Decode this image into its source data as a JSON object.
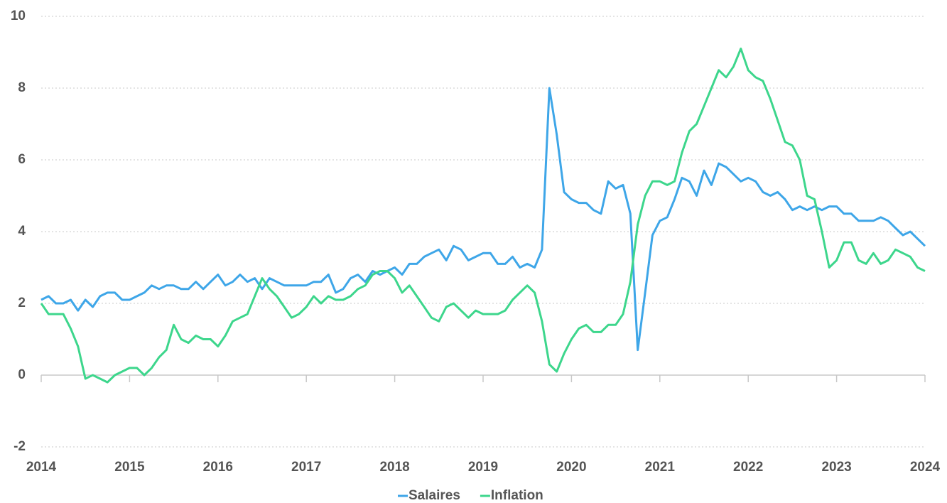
{
  "chart_data": {
    "type": "line",
    "categories": [
      "2014",
      null,
      null,
      null,
      null,
      null,
      null,
      null,
      null,
      null,
      null,
      null,
      "2015",
      null,
      null,
      null,
      null,
      null,
      null,
      null,
      null,
      null,
      null,
      null,
      "2016",
      null,
      null,
      null,
      null,
      null,
      null,
      null,
      null,
      null,
      null,
      null,
      "2017",
      null,
      null,
      null,
      null,
      null,
      null,
      null,
      null,
      null,
      null,
      null,
      "2018",
      null,
      null,
      null,
      null,
      null,
      null,
      null,
      null,
      null,
      null,
      null,
      "2019",
      null,
      null,
      null,
      null,
      null,
      null,
      null,
      null,
      null,
      null,
      null,
      "2020",
      null,
      null,
      null,
      null,
      null,
      null,
      null,
      null,
      null,
      null,
      null,
      "2021",
      null,
      null,
      null,
      null,
      null,
      null,
      null,
      null,
      null,
      null,
      null,
      "2022",
      null,
      null,
      null,
      null,
      null,
      null,
      null,
      null,
      null,
      null,
      null,
      "2023",
      null,
      null,
      null,
      null,
      null,
      null,
      null,
      null,
      null,
      null,
      null,
      "2024"
    ],
    "series": [
      {
        "name": "Salaires",
        "color": "#3ea6e8",
        "values": [
          2.1,
          2.2,
          2.0,
          2.0,
          2.1,
          1.8,
          2.1,
          1.9,
          2.2,
          2.3,
          2.3,
          2.1,
          2.1,
          2.2,
          2.3,
          2.5,
          2.4,
          2.5,
          2.5,
          2.4,
          2.4,
          2.6,
          2.4,
          2.6,
          2.8,
          2.5,
          2.6,
          2.8,
          2.6,
          2.7,
          2.4,
          2.7,
          2.6,
          2.5,
          2.5,
          2.5,
          2.5,
          2.6,
          2.6,
          2.8,
          2.3,
          2.4,
          2.7,
          2.8,
          2.6,
          2.9,
          2.8,
          2.9,
          3.0,
          2.8,
          3.1,
          3.1,
          3.3,
          3.4,
          3.5,
          3.2,
          3.6,
          3.5,
          3.2,
          3.3,
          3.4,
          3.4,
          3.1,
          3.1,
          3.3,
          3.0,
          3.1,
          3.0,
          3.5,
          8.0,
          6.7,
          5.1,
          4.9,
          4.8,
          4.8,
          4.6,
          4.5,
          5.4,
          5.2,
          5.3,
          4.5,
          0.7,
          2.3,
          3.9,
          4.3,
          4.4,
          4.9,
          5.5,
          5.4,
          5.0,
          5.7,
          5.3,
          5.9,
          5.8,
          5.6,
          5.4,
          5.5,
          5.4,
          5.1,
          5.0,
          5.1,
          4.9,
          4.6,
          4.7,
          4.6,
          4.7,
          4.6,
          4.7,
          4.7,
          4.5,
          4.5,
          4.3,
          4.3,
          4.3,
          4.4,
          4.3,
          4.1,
          3.9,
          4.0,
          3.8,
          3.6
        ]
      },
      {
        "name": "Inflation",
        "color": "#3dd68c",
        "values": [
          2.0,
          1.7,
          1.7,
          1.7,
          1.3,
          0.8,
          -0.1,
          0.0,
          -0.1,
          -0.2,
          0.0,
          0.1,
          0.2,
          0.2,
          0.0,
          0.2,
          0.5,
          0.7,
          1.4,
          1.0,
          0.9,
          1.1,
          1.0,
          1.0,
          0.8,
          1.1,
          1.5,
          1.6,
          1.7,
          2.2,
          2.7,
          2.4,
          2.2,
          1.9,
          1.6,
          1.7,
          1.9,
          2.2,
          2.0,
          2.2,
          2.1,
          2.1,
          2.2,
          2.4,
          2.5,
          2.8,
          2.9,
          2.9,
          2.7,
          2.3,
          2.5,
          2.2,
          1.9,
          1.6,
          1.5,
          1.9,
          2.0,
          1.8,
          1.6,
          1.8,
          1.7,
          1.7,
          1.7,
          1.8,
          2.1,
          2.3,
          2.5,
          2.3,
          1.5,
          0.3,
          0.1,
          0.6,
          1.0,
          1.3,
          1.4,
          1.2,
          1.2,
          1.4,
          1.4,
          1.7,
          2.6,
          4.2,
          5.0,
          5.4,
          5.4,
          5.3,
          5.4,
          6.2,
          6.8,
          7.0,
          7.5,
          8.0,
          8.5,
          8.3,
          8.6,
          9.1,
          8.5,
          8.3,
          8.2,
          7.7,
          7.1,
          6.5,
          6.4,
          6.0,
          5.0,
          4.9,
          4.0,
          3.0,
          3.2,
          3.7,
          3.7,
          3.2,
          3.1,
          3.4,
          3.1,
          3.2,
          3.5,
          3.4,
          3.3,
          3.0,
          2.9
        ]
      }
    ],
    "ylim": [
      -2,
      10
    ],
    "yticks": [
      -2,
      0,
      2,
      4,
      6,
      8,
      10
    ],
    "grid": true,
    "legend": "bottom"
  }
}
